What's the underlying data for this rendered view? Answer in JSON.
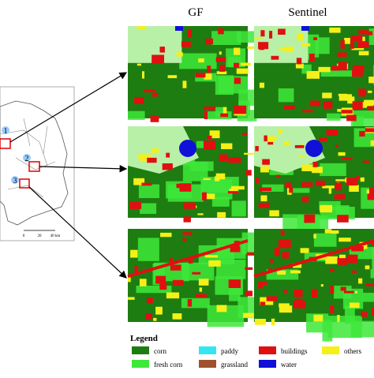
{
  "header": {
    "columns": [
      "GF",
      "Sentinel"
    ]
  },
  "map": {
    "region_labels": [
      "1",
      "2",
      "3"
    ],
    "scale_labels": [
      "0",
      "20",
      "40 km"
    ]
  },
  "legend": {
    "title": "Legend",
    "items": [
      {
        "label": "corn",
        "color": "#1d7d10"
      },
      {
        "label": "paddy",
        "color": "#33e6f0"
      },
      {
        "label": "buildings",
        "color": "#e01010"
      },
      {
        "label": "others",
        "color": "#f4f018"
      },
      {
        "label": "fresh corn",
        "color": "#3ee83a"
      },
      {
        "label": "grassland",
        "color": "#a0522d"
      },
      {
        "label": "water",
        "color": "#1010d8"
      }
    ]
  }
}
